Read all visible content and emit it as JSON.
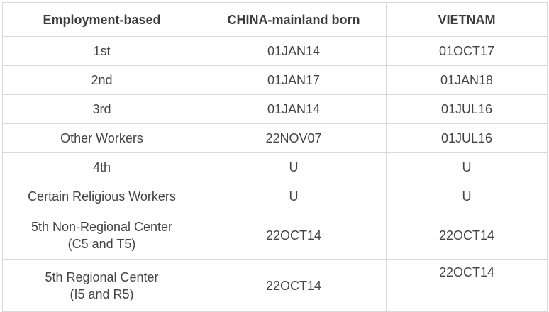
{
  "headers": [
    "Employment-based",
    "CHINA-mainland born",
    "VIETNAM"
  ],
  "rows": [
    {
      "category": "1st",
      "china": "01JAN14",
      "vietnam": "01OCT17"
    },
    {
      "category": "2nd",
      "china": "01JAN17",
      "vietnam": "01JAN18"
    },
    {
      "category": "3rd",
      "china": "01JAN14",
      "vietnam": "01JUL16"
    },
    {
      "category": "Other Workers",
      "china": "22NOV07",
      "vietnam": "01JUL16"
    },
    {
      "category": "4th",
      "china": "U",
      "vietnam": "U"
    },
    {
      "category": "Certain Religious Workers",
      "china": "U",
      "vietnam": "U"
    },
    {
      "category": "5th Non-Regional Center",
      "category_sub": "(C5 and T5)",
      "china": "22OCT14",
      "vietnam": "22OCT14"
    },
    {
      "category": "5th Regional Center",
      "category_sub": "(I5 and R5)",
      "china": "22OCT14",
      "vietnam": "22OCT14"
    }
  ]
}
